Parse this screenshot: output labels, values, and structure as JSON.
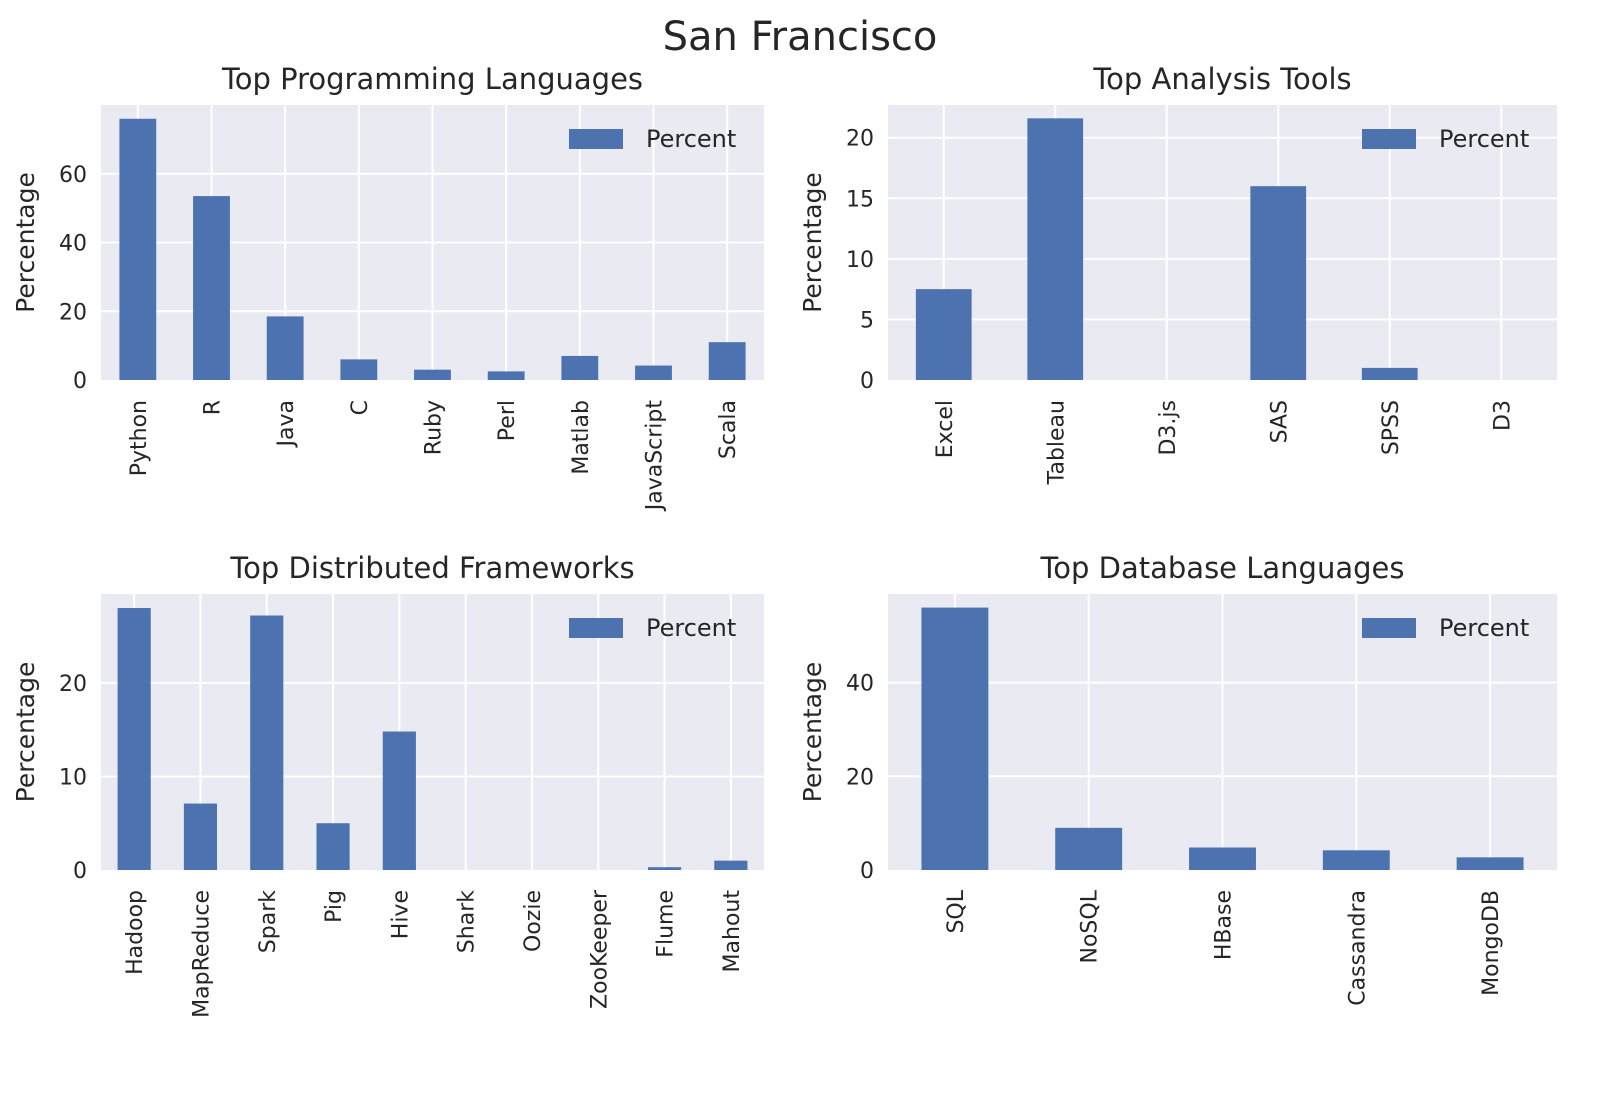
{
  "suptitle": "San Francisco",
  "style": {
    "bar_color": "#4c72b0",
    "plot_background": "#eaeaf2",
    "grid_color": "#ffffff",
    "text_color": "#262626"
  },
  "chart_data": [
    {
      "type": "bar",
      "title": "Top Programming Languages",
      "ylabel": "Percentage",
      "categories": [
        "Python",
        "R",
        "Java",
        "C",
        "Ruby",
        "Perl",
        "Matlab",
        "JavaScript",
        "Scala"
      ],
      "series": [
        {
          "name": "Percent",
          "values": [
            76,
            53.5,
            18.5,
            6,
            3,
            2.5,
            7,
            4.2,
            11
          ]
        }
      ],
      "ylim": [
        0,
        80
      ],
      "yticks": [
        0,
        20,
        40,
        60
      ],
      "grid": true,
      "legend": "top-right"
    },
    {
      "type": "bar",
      "title": "Top Analysis Tools",
      "ylabel": "Percentage",
      "categories": [
        "Excel",
        "Tableau",
        "D3.js",
        "SAS",
        "SPSS",
        "D3"
      ],
      "series": [
        {
          "name": "Percent",
          "values": [
            7.5,
            21.6,
            0,
            16,
            1,
            0
          ]
        }
      ],
      "ylim": [
        0,
        22.7
      ],
      "yticks": [
        0,
        5,
        10,
        15,
        20
      ],
      "grid": true,
      "legend": "top-right"
    },
    {
      "type": "bar",
      "title": "Top Distributed Frameworks",
      "ylabel": "Percentage",
      "categories": [
        "Hadoop",
        "MapReduce",
        "Spark",
        "Pig",
        "Hive",
        "Shark",
        "Oozie",
        "ZooKeeper",
        "Flume",
        "Mahout"
      ],
      "series": [
        {
          "name": "Percent",
          "values": [
            28,
            7.1,
            27.2,
            5,
            14.8,
            0,
            0,
            0,
            0.3,
            1
          ]
        }
      ],
      "ylim": [
        0,
        29.5
      ],
      "yticks": [
        0,
        10,
        20
      ],
      "grid": true,
      "legend": "top-right"
    },
    {
      "type": "bar",
      "title": "Top Database Languages",
      "ylabel": "Percentage",
      "categories": [
        "SQL",
        "NoSQL",
        "HBase",
        "Cassandra",
        "MongoDB"
      ],
      "series": [
        {
          "name": "Percent",
          "values": [
            56,
            9,
            4.8,
            4.2,
            2.7
          ]
        }
      ],
      "ylim": [
        0,
        58.9
      ],
      "yticks": [
        0,
        20,
        40
      ],
      "grid": true,
      "legend": "top-right"
    }
  ]
}
